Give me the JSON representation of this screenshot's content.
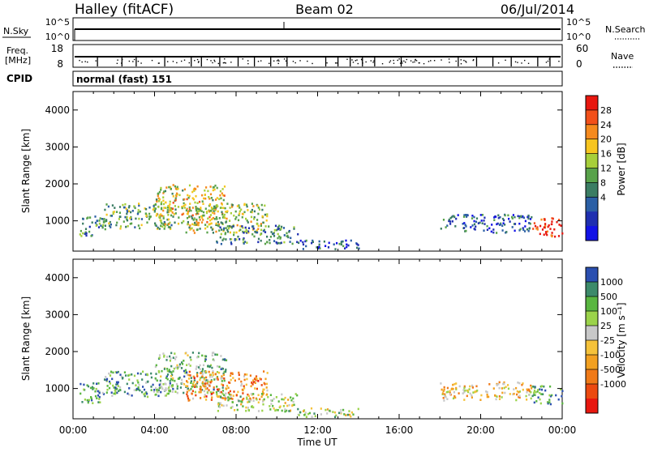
{
  "header": {
    "site": "Halley (fitACF)",
    "beam": "Beam 02",
    "date": "06/Jul/2014"
  },
  "strip": {
    "nsky_label": "N.Sky",
    "nsky_ticks": [
      "10^5",
      "10^0"
    ],
    "nsearch_label": "N.Search",
    "nsearch_ticks": [
      "10^5",
      "10^0"
    ],
    "freq_label_1": "Freq.",
    "freq_label_2": "[MHz]",
    "freq_ticks": [
      "18",
      "8"
    ],
    "nave_label": "Nave",
    "nave_ticks": [
      "60",
      "0"
    ],
    "cpid_label": "CPID",
    "cpid_value": "normal (fast) 151"
  },
  "chart_data": [
    {
      "type": "heatmap",
      "name": "power",
      "xlabel": "Time UT",
      "ylabel": "Slant Range [km]",
      "x_ticks": [
        "00:00",
        "04:00",
        "08:00",
        "12:00",
        "16:00",
        "20:00",
        "00:00"
      ],
      "y_ticks": [
        1000,
        2000,
        3000,
        4000
      ],
      "xlim_hours": [
        0,
        24
      ],
      "ylim_km": [
        180,
        4500
      ],
      "colorbar_label": "Power [dB]",
      "colorbar_ticks": [
        "28",
        "24",
        "20",
        "16",
        "12",
        "8",
        "4"
      ],
      "colorbar_colors": [
        "#e8170f",
        "#f2501a",
        "#f58a1e",
        "#f7c51f",
        "#a7cf3a",
        "#58a24a",
        "#3b7d63",
        "#2b5fa5",
        "#1f2fb0",
        "#1212e6"
      ],
      "blobs": [
        {
          "t": [
            0.3,
            1.5
          ],
          "r": [
            600,
            1200
          ],
          "level": 0.35
        },
        {
          "t": [
            1.5,
            5.0
          ],
          "r": [
            800,
            1500
          ],
          "level": 0.45
        },
        {
          "t": [
            4.0,
            7.5
          ],
          "r": [
            900,
            2000
          ],
          "level": 0.6
        },
        {
          "t": [
            5.5,
            9.5
          ],
          "r": [
            700,
            1500
          ],
          "level": 0.55
        },
        {
          "t": [
            7.0,
            11.0
          ],
          "r": [
            400,
            900
          ],
          "level": 0.35
        },
        {
          "t": [
            11.0,
            14.0
          ],
          "r": [
            250,
            500
          ],
          "level": 0.2
        },
        {
          "t": [
            18.0,
            22.5
          ],
          "r": [
            700,
            1200
          ],
          "level": 0.25
        },
        {
          "t": [
            22.5,
            24.0
          ],
          "r": [
            600,
            1100
          ],
          "level": 0.95
        }
      ]
    },
    {
      "type": "heatmap",
      "name": "velocity",
      "xlabel": "Time UT",
      "ylabel": "Slant Range [km]",
      "x_ticks": [
        "00:00",
        "04:00",
        "08:00",
        "12:00",
        "16:00",
        "20:00",
        "00:00"
      ],
      "y_ticks": [
        1000,
        2000,
        3000,
        4000
      ],
      "xlim_hours": [
        0,
        24
      ],
      "ylim_km": [
        180,
        4500
      ],
      "colorbar_label": "Velocity [m s⁻¹]",
      "colorbar_ticks": [
        "1000",
        "500",
        "100",
        "25",
        "-25",
        "-100",
        "-500",
        "-1000"
      ],
      "colorbar_colors": [
        "#2b4fb0",
        "#3c8a6a",
        "#59b640",
        "#9bd34a",
        "#c8c8c8",
        "#f5c23a",
        "#f2a020",
        "#f07a18",
        "#ec4a10",
        "#e8170f"
      ],
      "blobs": [
        {
          "t": [
            0.3,
            1.5
          ],
          "r": [
            600,
            1200
          ],
          "level": 0.8
        },
        {
          "t": [
            1.5,
            5.0
          ],
          "r": [
            800,
            1500
          ],
          "level": 0.75
        },
        {
          "t": [
            4.0,
            7.5
          ],
          "r": [
            900,
            2000
          ],
          "level": 0.7
        },
        {
          "t": [
            5.5,
            9.5
          ],
          "r": [
            700,
            1500
          ],
          "level": 0.3
        },
        {
          "t": [
            7.0,
            11.0
          ],
          "r": [
            400,
            900
          ],
          "level": 0.6
        },
        {
          "t": [
            11.0,
            14.0
          ],
          "r": [
            250,
            500
          ],
          "level": 0.6
        },
        {
          "t": [
            18.0,
            22.5
          ],
          "r": [
            700,
            1200
          ],
          "level": 0.45
        },
        {
          "t": [
            22.5,
            24.0
          ],
          "r": [
            600,
            1100
          ],
          "level": 0.85
        }
      ]
    }
  ]
}
